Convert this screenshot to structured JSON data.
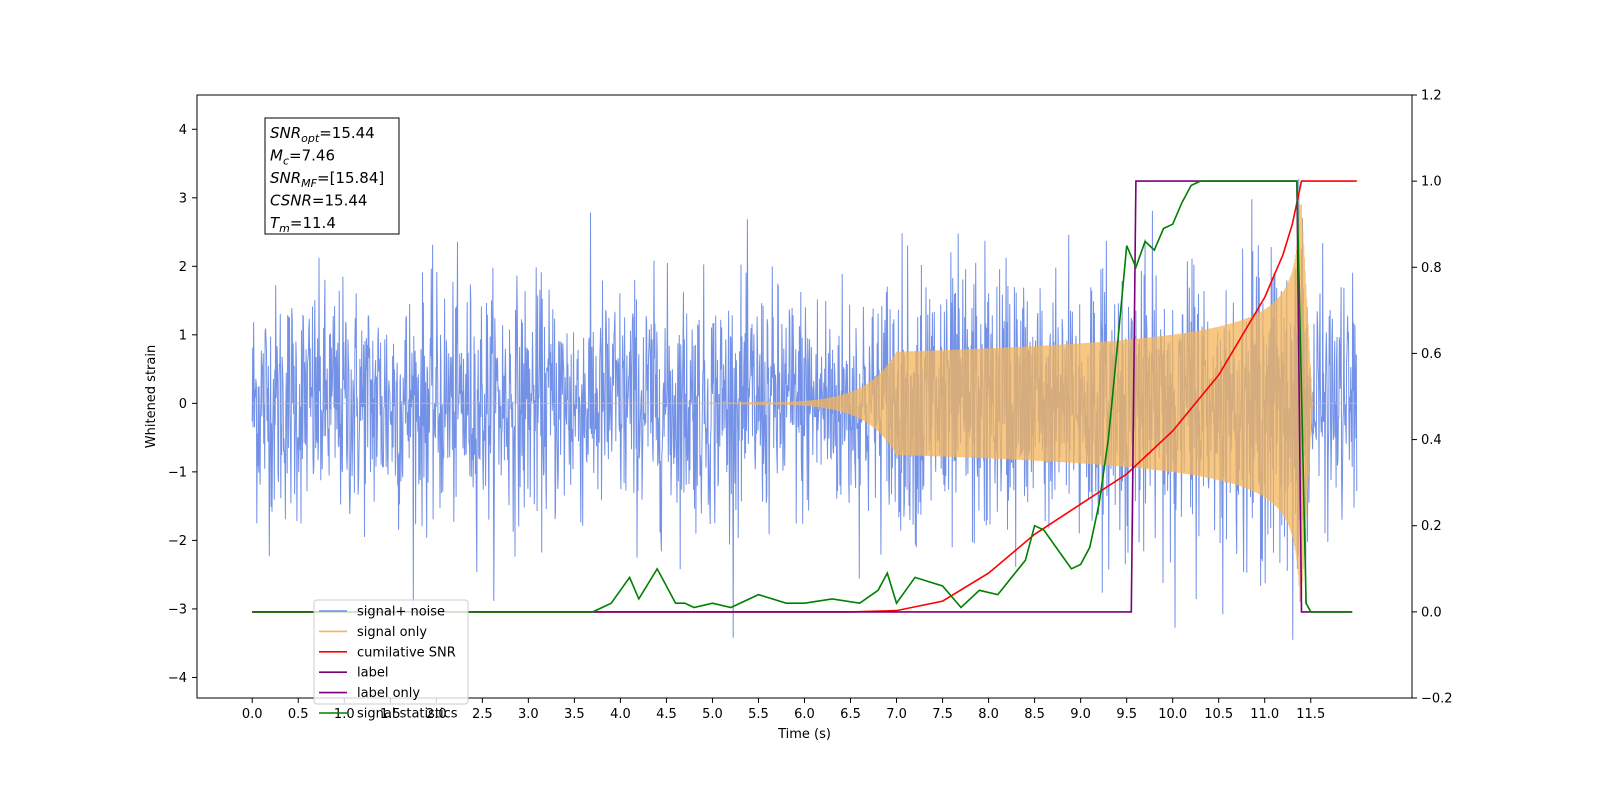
{
  "chart_data": {
    "type": "line",
    "xlabel": "Time (s)",
    "ylabel": "Whitened strain",
    "xlim": [
      -0.6,
      12.6
    ],
    "ylim": [
      -4.3,
      4.5
    ],
    "y2lim": [
      -0.2,
      1.2
    ],
    "x_ticks": [
      0.0,
      0.5,
      1.0,
      1.5,
      2.0,
      2.5,
      3.0,
      3.5,
      4.0,
      4.5,
      5.0,
      5.5,
      6.0,
      6.5,
      7.0,
      7.5,
      8.0,
      8.5,
      9.0,
      9.5,
      10.0,
      10.5,
      11.0,
      11.5
    ],
    "x_tick_labels": [
      "0.0",
      "0.5",
      "1.0",
      "1.5",
      "2.0",
      "2.5",
      "3.0",
      "3.5",
      "4.0",
      "4.5",
      "5.0",
      "5.5",
      "6.0",
      "6.5",
      "7.0",
      "7.5",
      "8.0",
      "8.5",
      "9.0",
      "9.5",
      "10.0",
      "10.5",
      "11.0",
      "11.5"
    ],
    "y_ticks": [
      -4,
      -3,
      -2,
      -1,
      0,
      1,
      2,
      3,
      4
    ],
    "y_tick_labels": [
      "−4",
      "−3",
      "−2",
      "−1",
      "0",
      "1",
      "2",
      "3",
      "4"
    ],
    "y2_ticks": [
      -0.2,
      0.0,
      0.2,
      0.4,
      0.6,
      0.8,
      1.0,
      1.2
    ],
    "y2_tick_labels": [
      "−0.2",
      "0.0",
      "0.2",
      "0.4",
      "0.6",
      "0.8",
      "1.0",
      "1.2"
    ],
    "stats_box": {
      "snr_opt": {
        "base": "SNR",
        "sub": "opt",
        "value": "=15.44"
      },
      "mc": {
        "base": "M",
        "sub": "c",
        "value": "=7.46"
      },
      "snr_mf": {
        "base": "SNR",
        "sub": "MF",
        "value": "=[15.84]"
      },
      "csnr": {
        "base": "CSNR",
        "value": "=15.44"
      },
      "tm": {
        "base": "T",
        "sub": "m",
        "value": "=11.4"
      }
    },
    "series": [
      {
        "name": "signal+ noise",
        "color": "#6b8be6",
        "axis": "left",
        "noise_sigma": 0.85,
        "x_range": [
          0.0,
          12.0
        ]
      },
      {
        "name": "signal only",
        "color": "#f5b55a",
        "axis": "left",
        "merger_time": 11.4,
        "amplitude_at_merger": 2.9,
        "x_range": [
          0.0,
          12.0
        ]
      },
      {
        "name": "cumilative SNR",
        "color": "#ff0000",
        "axis": "right",
        "x": [
          0.0,
          6.5,
          7.0,
          7.5,
          8.0,
          8.5,
          9.0,
          9.5,
          10.0,
          10.5,
          11.0,
          11.2,
          11.3,
          11.4,
          11.5,
          11.6,
          11.7,
          11.8,
          11.9,
          12.0
        ],
        "values": [
          0.0,
          0.0,
          0.003,
          0.025,
          0.09,
          0.18,
          0.25,
          0.32,
          0.42,
          0.55,
          0.73,
          0.83,
          0.9,
          1.0,
          1.0,
          1.0,
          1.0,
          1.0,
          1.0,
          1.0
        ]
      },
      {
        "name": "label",
        "color": "#7a007a",
        "axis": "right",
        "x": [
          0.0,
          9.55,
          9.6,
          11.35,
          11.4,
          11.95
        ],
        "values": [
          0.0,
          0.0,
          1.0,
          1.0,
          0.0,
          0.0
        ]
      },
      {
        "name": "label only",
        "legend_only": true,
        "color": "#7a007a"
      },
      {
        "name": "signal statistics",
        "color": "#008000",
        "axis": "right",
        "x": [
          0.0,
          3.7,
          3.9,
          4.0,
          4.1,
          4.2,
          4.4,
          4.5,
          4.6,
          4.7,
          4.8,
          5.0,
          5.2,
          5.5,
          5.8,
          6.0,
          6.3,
          6.6,
          6.8,
          6.9,
          7.0,
          7.2,
          7.5,
          7.7,
          7.9,
          8.1,
          8.4,
          8.5,
          8.6,
          8.8,
          8.9,
          9.0,
          9.1,
          9.2,
          9.3,
          9.4,
          9.5,
          9.6,
          9.7,
          9.8,
          9.9,
          10.0,
          10.1,
          10.2,
          10.3,
          10.5,
          10.8,
          11.0,
          11.2,
          11.3,
          11.35,
          11.45,
          11.5,
          11.95
        ],
        "values": [
          0.0,
          0.0,
          0.02,
          0.05,
          0.08,
          0.03,
          0.1,
          0.06,
          0.02,
          0.02,
          0.01,
          0.02,
          0.01,
          0.04,
          0.02,
          0.02,
          0.03,
          0.02,
          0.05,
          0.09,
          0.02,
          0.08,
          0.06,
          0.01,
          0.05,
          0.04,
          0.12,
          0.2,
          0.19,
          0.13,
          0.1,
          0.11,
          0.15,
          0.25,
          0.4,
          0.62,
          0.85,
          0.8,
          0.86,
          0.84,
          0.89,
          0.9,
          0.95,
          0.99,
          1.0,
          1.0,
          1.0,
          1.0,
          1.0,
          1.0,
          1.0,
          0.02,
          0.0,
          0.0
        ]
      }
    ],
    "legend": {
      "placement": "lower-left",
      "entries": [
        {
          "label": "signal+ noise",
          "color": "#6b8be6"
        },
        {
          "label": "signal only",
          "color": "#f5b55a"
        },
        {
          "label": "cumilative SNR",
          "color": "#ff0000"
        },
        {
          "label": "label",
          "color": "#7a007a"
        },
        {
          "label": "label only",
          "color": "#7a007a"
        },
        {
          "label": "signal statistics",
          "color": "#008000"
        }
      ]
    }
  }
}
